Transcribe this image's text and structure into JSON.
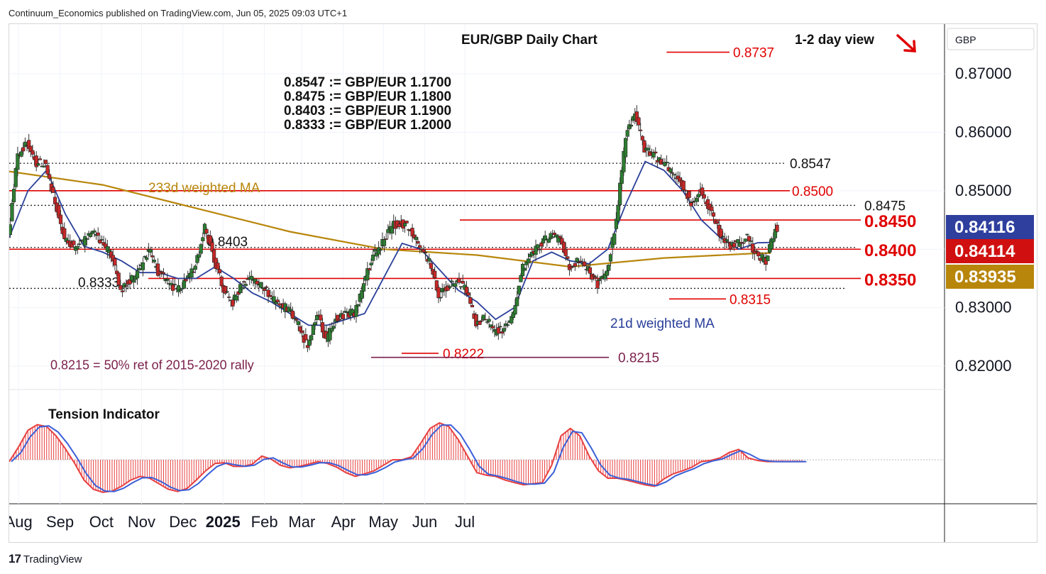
{
  "header": {
    "text": "Continuum_Economics published on TradingView.com, Jun 05, 2025 09:03 UTC+1"
  },
  "footer": {
    "logo_mark": "17",
    "logo_text": "TradingView"
  },
  "colors": {
    "candle_up": "#2e7d32",
    "candle_down": "#c62828",
    "ma21": "#2a3f9a",
    "ma233": "#b8860b",
    "level_line": "#e00000",
    "ret_line": "#7b1f4a",
    "tension_fill": "#e84040",
    "tension_signal": "#3a5fd8",
    "badge_blue": "#2e3f9e",
    "badge_red": "#d01010",
    "badge_gold": "#b8860b"
  },
  "chart_data": {
    "type": "candlestick",
    "title": "EUR/GBP Daily Chart",
    "view": "1-2 day view",
    "view_direction": "down",
    "currency_label": "GBP",
    "x_axis": {
      "months": [
        "Aug",
        "Sep",
        "Oct",
        "Nov",
        "Dec",
        "2025",
        "Feb",
        "Mar",
        "Apr",
        "May",
        "Jun",
        "Jul"
      ]
    },
    "y_axis": {
      "ticks": [
        "0.87000",
        "0.86000",
        "0.85000",
        "0.84000",
        "0.83000",
        "0.82000"
      ],
      "tick_values": [
        0.87,
        0.86,
        0.85,
        0.84,
        0.83,
        0.82
      ],
      "range": [
        0.816,
        0.8785
      ]
    },
    "price_badges": [
      {
        "label": "0.84116",
        "value": 0.84116,
        "series": "21d weighted MA"
      },
      {
        "label": "0.84114",
        "value": 0.84114,
        "series": "price"
      },
      {
        "label": "0.83935",
        "value": 0.83935,
        "series": "233d weighted MA"
      }
    ],
    "conversion_notes": [
      "0.8547 := GBP/EUR 1.1700",
      "0.8475 := GBP/EUR 1.1800",
      "0.8403 := GBP/EUR 1.1900",
      "0.8333 := GBP/EUR 1.2000"
    ],
    "levels": [
      {
        "label": "0.8547",
        "value": 0.8547,
        "style": "dotted-black"
      },
      {
        "label": "0.8500",
        "value": 0.85,
        "style": "solid-red"
      },
      {
        "label": "0.8475",
        "value": 0.8475,
        "style": "dotted-black"
      },
      {
        "label": "0.8450",
        "value": 0.845,
        "style": "solid-red"
      },
      {
        "label": "0.8403",
        "value": 0.8403,
        "style": "dotted-black"
      },
      {
        "label": "0.8400",
        "value": 0.84,
        "style": "solid-red"
      },
      {
        "label": "0.8350",
        "value": 0.835,
        "style": "solid-red"
      },
      {
        "label": "0.8333",
        "value": 0.8333,
        "style": "dotted-black"
      }
    ],
    "annotations": [
      {
        "label": "0.8737",
        "value": 0.8737
      },
      {
        "label": "0.8315",
        "value": 0.8315
      },
      {
        "label": "0.8222",
        "value": 0.8222
      },
      {
        "label": "0.8215",
        "value": 0.8215
      },
      {
        "label": "0.8215 = 50% ret of 2015-2020 rally"
      }
    ],
    "ma_labels": {
      "ma233": "233d weighted MA",
      "ma21": "21d weighted MA"
    },
    "indicator": {
      "title": "Tension Indicator",
      "values": [
        -0.05,
        0.35,
        0.8,
        0.95,
        0.9,
        0.65,
        0.3,
        -0.1,
        -0.55,
        -0.8,
        -0.88,
        -0.85,
        -0.72,
        -0.55,
        -0.45,
        -0.5,
        -0.65,
        -0.8,
        -0.86,
        -0.78,
        -0.55,
        -0.3,
        -0.1,
        -0.08,
        -0.18,
        -0.18,
        -0.12,
        0.1,
        0.02,
        -0.15,
        -0.22,
        -0.18,
        -0.12,
        -0.05,
        -0.1,
        -0.2,
        -0.35,
        -0.45,
        -0.38,
        -0.3,
        -0.15,
        0.0,
        0.0,
        0.08,
        0.45,
        0.85,
        1.0,
        0.9,
        0.55,
        0.1,
        -0.35,
        -0.42,
        -0.45,
        -0.55,
        -0.62,
        -0.68,
        -0.65,
        -0.62,
        -0.15,
        0.65,
        0.85,
        0.65,
        0.1,
        -0.3,
        -0.5,
        -0.5,
        -0.55,
        -0.62,
        -0.68,
        -0.72,
        -0.52,
        -0.38,
        -0.3,
        -0.2,
        -0.05,
        -0.02,
        0.05,
        0.2,
        0.28,
        0.05,
        -0.02,
        -0.05,
        -0.05,
        -0.05,
        -0.05,
        -0.05,
        -0.05,
        -0.05,
        -0.05,
        -0.05,
        -0.05,
        -0.05,
        -0.05,
        -0.05,
        -0.05,
        -0.05,
        -0.05,
        -0.05,
        -0.05,
        -0.05
      ],
      "x_days": [
        0,
        7,
        14,
        21,
        28,
        35,
        42,
        49,
        56,
        63,
        70,
        77,
        84,
        91,
        98,
        105,
        112,
        119,
        126,
        133,
        140,
        147,
        154,
        161,
        168,
        175,
        182,
        189,
        196,
        203,
        210,
        217,
        224,
        231,
        238,
        245,
        252,
        259,
        266,
        273,
        280,
        287,
        294,
        301,
        308,
        315,
        322,
        329,
        336,
        343,
        350,
        357,
        364,
        371,
        378,
        385,
        392,
        399,
        406,
        413,
        420,
        427,
        434,
        441,
        448,
        455,
        462,
        469,
        476,
        483,
        490,
        497,
        504,
        511,
        518,
        525,
        532,
        539,
        546,
        553,
        560,
        567,
        574,
        581,
        588,
        595,
        602,
        609,
        616,
        623,
        630,
        637,
        644,
        651,
        658,
        665,
        672,
        679,
        686,
        693
      ]
    },
    "series": [
      {
        "name": "EUR/GBP",
        "points_day": [
          0,
          7,
          14,
          21,
          28,
          35,
          42,
          49,
          56,
          63,
          70,
          77,
          84,
          91,
          98,
          105,
          112,
          119,
          126,
          133,
          140,
          147,
          154,
          161,
          168,
          175,
          182,
          189,
          196,
          203,
          210,
          217,
          224,
          231,
          238,
          245,
          252,
          259,
          266,
          273,
          280,
          287,
          294,
          301,
          308,
          315,
          322,
          329,
          336,
          343,
          350,
          357,
          364,
          371,
          378,
          385,
          392,
          399,
          406,
          413,
          420,
          427,
          434,
          441,
          448,
          455,
          462,
          469,
          476,
          483,
          490,
          497,
          504,
          511,
          518,
          525,
          532,
          539,
          546,
          553,
          560,
          567,
          574,
          581,
          588,
          595,
          602,
          609,
          616,
          623,
          630,
          637,
          644,
          651,
          658,
          665,
          672,
          679,
          686,
          693
        ],
        "close": [
          0.842,
          0.856,
          0.8583,
          0.8548,
          0.8545,
          0.848,
          0.842,
          0.8405,
          0.8412,
          0.8428,
          0.841,
          0.8392,
          0.833,
          0.8345,
          0.8365,
          0.84,
          0.836,
          0.8345,
          0.833,
          0.8345,
          0.837,
          0.844,
          0.8385,
          0.833,
          0.831,
          0.834,
          0.835,
          0.834,
          0.832,
          0.83,
          0.83,
          0.827,
          0.8232,
          0.829,
          0.8245,
          0.828,
          0.829,
          0.829,
          0.834,
          0.839,
          0.841,
          0.844,
          0.8445,
          0.8435,
          0.84,
          0.838,
          0.832,
          0.8335,
          0.8345,
          0.833,
          0.8275,
          0.8283,
          0.826,
          0.8262,
          0.829,
          0.837,
          0.839,
          0.841,
          0.8425,
          0.8415,
          0.837,
          0.838,
          0.8365,
          0.834,
          0.836,
          0.845,
          0.859,
          0.8637,
          0.857,
          0.856,
          0.855,
          0.853,
          0.851,
          0.848,
          0.85,
          0.847,
          0.843,
          0.8405,
          0.841,
          0.842,
          0.839,
          0.838,
          0.8435,
          0.844,
          0.8411,
          0.8411,
          0.8411,
          0.8411,
          0.8411,
          0.8411,
          0.8411,
          0.8411,
          0.8411,
          0.8411,
          0.8411,
          0.8411,
          0.8411,
          0.8411,
          0.8411,
          0.8411
        ]
      },
      {
        "name": "21d weighted MA",
        "points_day": [
          0,
          14,
          28,
          42,
          56,
          70,
          84,
          98,
          112,
          126,
          140,
          154,
          168,
          182,
          196,
          210,
          224,
          238,
          252,
          266,
          280,
          294,
          308,
          322,
          336,
          350,
          364,
          378,
          392,
          406,
          420,
          434,
          448,
          462,
          476,
          490,
          504,
          518,
          532,
          546,
          560,
          570
        ],
        "values": [
          0.842,
          0.85,
          0.8535,
          0.846,
          0.8405,
          0.8395,
          0.838,
          0.836,
          0.836,
          0.835,
          0.835,
          0.837,
          0.835,
          0.8325,
          0.831,
          0.829,
          0.827,
          0.827,
          0.828,
          0.829,
          0.835,
          0.841,
          0.84,
          0.8365,
          0.833,
          0.831,
          0.828,
          0.83,
          0.838,
          0.8395,
          0.838,
          0.8375,
          0.84,
          0.848,
          0.855,
          0.8535,
          0.85,
          0.845,
          0.842,
          0.84,
          0.8411,
          0.84116
        ]
      },
      {
        "name": "233d weighted MA",
        "points_day": [
          0,
          70,
          140,
          210,
          280,
          350,
          420,
          490,
          560,
          570
        ],
        "values": [
          0.8533,
          0.851,
          0.847,
          0.843,
          0.84,
          0.839,
          0.837,
          0.8385,
          0.8393,
          0.83935
        ]
      }
    ]
  }
}
